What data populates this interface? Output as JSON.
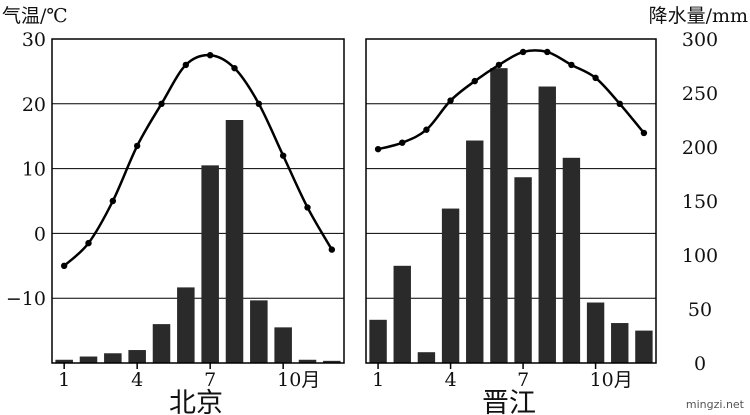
{
  "chart_data": [
    {
      "type": "bar",
      "title": "北京",
      "months": [
        1,
        2,
        3,
        4,
        5,
        6,
        7,
        8,
        9,
        10,
        11,
        12
      ],
      "x_tick_labels": [
        "1",
        "4",
        "7",
        "10月"
      ],
      "precipitation_mm": [
        3,
        6,
        9,
        12,
        36,
        70,
        183,
        225,
        58,
        33,
        3,
        2
      ],
      "temperature_c": [
        -5,
        -1.5,
        5,
        13.5,
        20,
        26,
        27.5,
        25.5,
        20,
        12,
        4,
        -2.5
      ],
      "temperature_ylim": [
        -20,
        30
      ],
      "precipitation_ylim": [
        0,
        300
      ],
      "grid": "horizontal"
    },
    {
      "type": "bar",
      "title": "晋江",
      "months": [
        1,
        2,
        3,
        4,
        5,
        6,
        7,
        8,
        9,
        10,
        11,
        12
      ],
      "x_tick_labels": [
        "1",
        "4",
        "7",
        "10月"
      ],
      "precipitation_mm": [
        40,
        90,
        10,
        143,
        206,
        273,
        172,
        256,
        190,
        56,
        37,
        30
      ],
      "temperature_c": [
        13,
        14,
        16,
        20.5,
        23.5,
        26,
        28,
        28,
        26,
        24,
        20,
        15.5
      ],
      "temperature_ylim": [
        -20,
        30
      ],
      "precipitation_ylim": [
        0,
        300
      ],
      "grid": "horizontal"
    }
  ],
  "axes": {
    "left_unit": "气温/℃",
    "right_unit": "降水量/mm",
    "left_ticks": [
      "30",
      "20",
      "10",
      "0",
      "−10"
    ],
    "left_tick_values": [
      30,
      20,
      10,
      0,
      -10
    ],
    "right_ticks": [
      "300",
      "250",
      "200",
      "150",
      "100",
      "50",
      "0"
    ],
    "right_tick_values": [
      300,
      250,
      200,
      150,
      100,
      50,
      0
    ]
  },
  "watermark": "mingzi.net",
  "colors": {
    "bar": "#2a2a2a",
    "line": "#000000",
    "grid": "#000000"
  }
}
